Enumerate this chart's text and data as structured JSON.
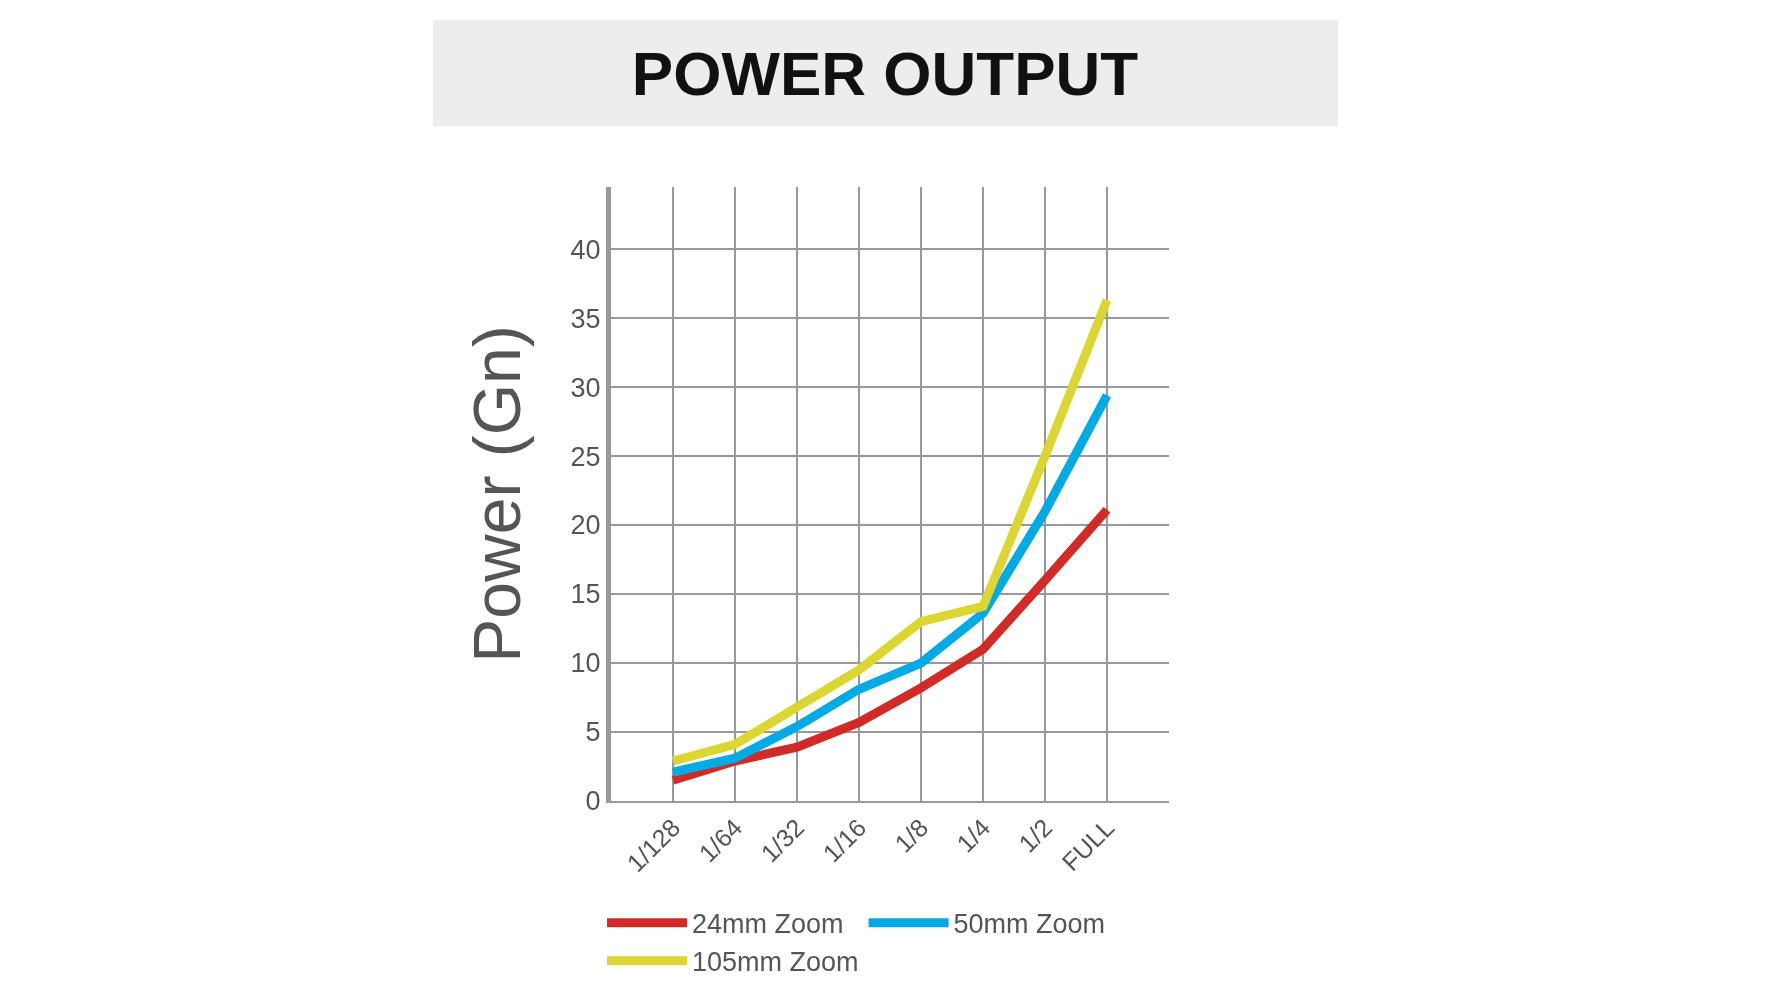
{
  "chart_data": {
    "type": "line",
    "title": "POWER OUTPUT",
    "ylabel": "Power (Gn)",
    "categories": [
      "1/128",
      "1/64",
      "1/32",
      "1/16",
      "1/8",
      "1/4",
      "1/2",
      "FULL"
    ],
    "series": [
      {
        "name": "24mm Zoom",
        "color": "#d22b27",
        "values": [
          1.5,
          2.9,
          3.9,
          5.7,
          8.2,
          11,
          16,
          21.1
        ]
      },
      {
        "name": "50mm Zoom",
        "color": "#00aae4",
        "values": [
          2.1,
          3.1,
          5.4,
          8.1,
          10,
          13.6,
          21,
          29.4
        ]
      },
      {
        "name": "105mm Zoom",
        "color": "#dcd632",
        "values": [
          2.9,
          4.1,
          6.8,
          9.5,
          13,
          14.1,
          25,
          36.3
        ]
      }
    ],
    "ylim": [
      0,
      44.5
    ],
    "yticks": [
      0,
      5,
      10,
      15,
      20,
      25,
      30,
      35,
      40
    ],
    "grid": true,
    "legend": "bottom",
    "marker": "none",
    "line_style": "solid"
  }
}
